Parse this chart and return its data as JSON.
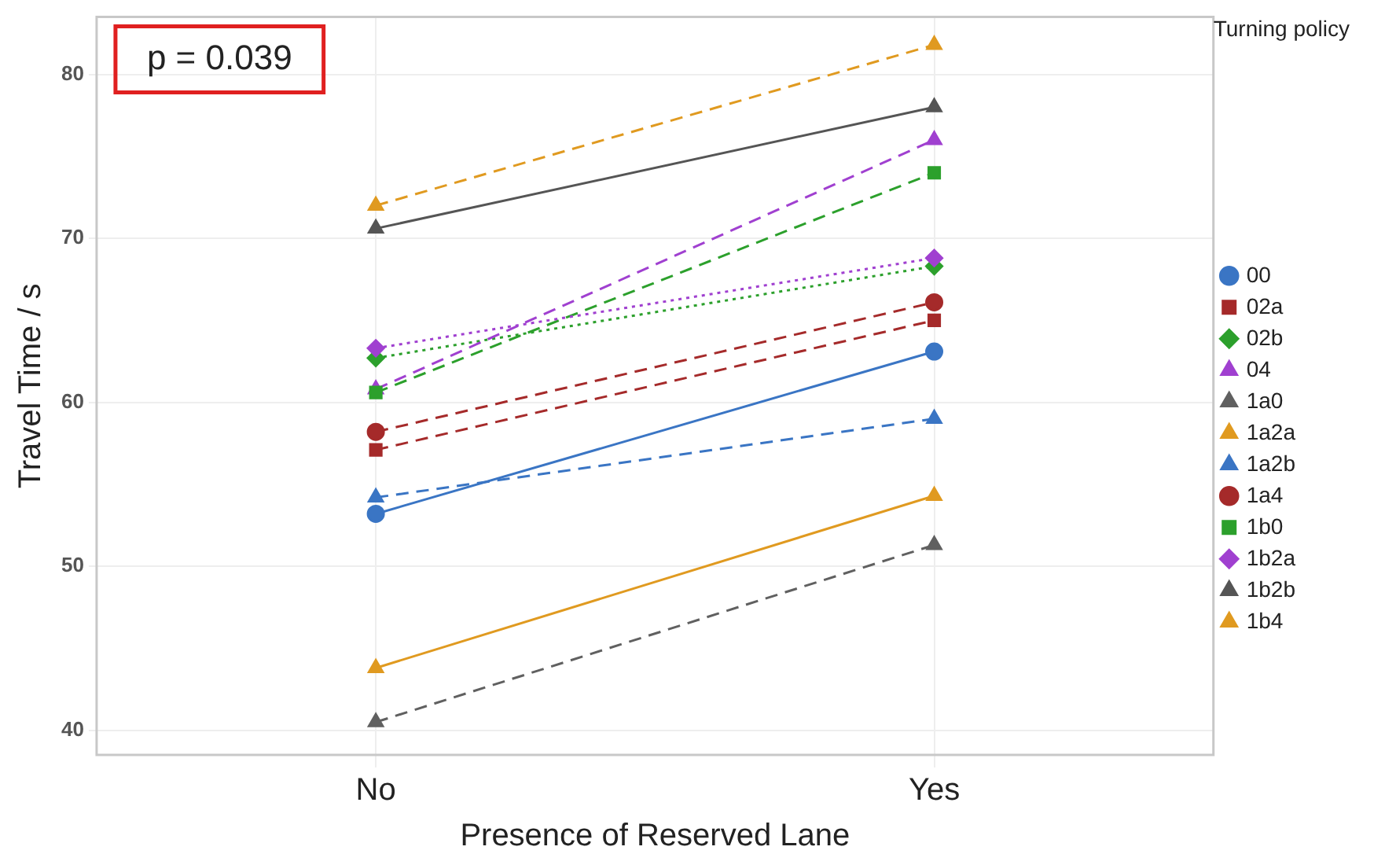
{
  "chart_data": {
    "type": "line",
    "xlabel": "Presence of Reserved Lane",
    "ylabel": "Travel Time / s",
    "legend_title": "Turning policy",
    "legend": "right",
    "grid": true,
    "categories": [
      "No",
      "Yes"
    ],
    "ylim": [
      38.5,
      83.5
    ],
    "yticks": [
      40,
      50,
      60,
      70,
      80
    ],
    "annotations": [
      "p = 0.039"
    ],
    "series": [
      {
        "name": "00",
        "color": "#3a75c4",
        "values": [
          53.2,
          63.1
        ],
        "marker": "circle",
        "line_style": "solid"
      },
      {
        "name": "02a",
        "color": "#a52a2a",
        "values": [
          57.1,
          65.0
        ],
        "marker": "square",
        "line_style": "dashed"
      },
      {
        "name": "02b",
        "color": "#2ca02c",
        "values": [
          62.7,
          68.3
        ],
        "marker": "diamond",
        "line_style": "dotted"
      },
      {
        "name": "04",
        "color": "#a040d0",
        "values": [
          60.8,
          76.0
        ],
        "marker": "triangle",
        "line_style": "dashed"
      },
      {
        "name": "1a0",
        "color": "#606060",
        "values": [
          40.5,
          51.3
        ],
        "marker": "triangle",
        "line_style": "dashed"
      },
      {
        "name": "1a2a",
        "color": "#e09a20",
        "values": [
          43.8,
          54.3
        ],
        "marker": "triangle",
        "line_style": "solid"
      },
      {
        "name": "1a2b",
        "color": "#3a75c4",
        "values": [
          54.2,
          59.0
        ],
        "marker": "triangle",
        "line_style": "dashed"
      },
      {
        "name": "1a4",
        "color": "#a52a2a",
        "values": [
          58.2,
          66.1
        ],
        "marker": "circle",
        "line_style": "dashed"
      },
      {
        "name": "1b0",
        "color": "#2ca02c",
        "values": [
          60.6,
          74.0
        ],
        "marker": "square",
        "line_style": "dashed"
      },
      {
        "name": "1b2a",
        "color": "#a040d0",
        "values": [
          63.3,
          68.8
        ],
        "marker": "diamond",
        "line_style": "dotted"
      },
      {
        "name": "1b2b",
        "color": "#555555",
        "values": [
          70.6,
          78.0
        ],
        "marker": "triangle",
        "line_style": "solid"
      },
      {
        "name": "1b4",
        "color": "#e09a20",
        "values": [
          72.0,
          81.8
        ],
        "marker": "triangle",
        "line_style": "dashed"
      }
    ]
  }
}
